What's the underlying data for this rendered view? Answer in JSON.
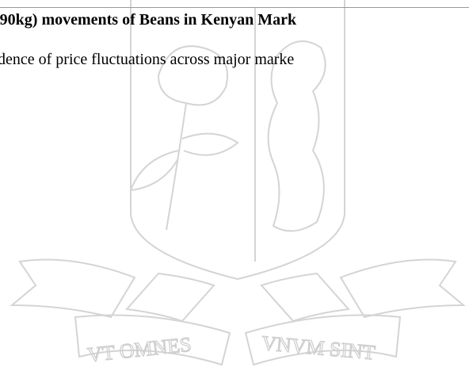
{
  "document": {
    "heading": "(90kg) movements of Beans in Kenyan Mark",
    "body": "dence of price fluctuations across major marke",
    "watermark": {
      "motto_left": "VT OMNES",
      "motto_right": "VNVM SINT"
    }
  }
}
